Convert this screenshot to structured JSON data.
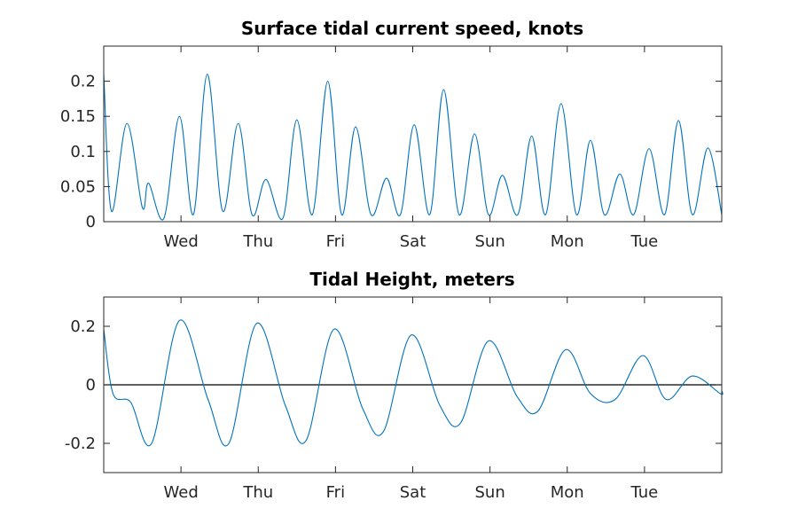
{
  "chart_data": [
    {
      "type": "line",
      "title": "Surface tidal current speed, knots",
      "x_domain": [
        0,
        8
      ],
      "xticks": [
        {
          "x": 1,
          "label": "Wed"
        },
        {
          "x": 2,
          "label": "Thu"
        },
        {
          "x": 3,
          "label": "Fri"
        },
        {
          "x": 4,
          "label": "Sat"
        },
        {
          "x": 5,
          "label": "Sun"
        },
        {
          "x": 6,
          "label": "Mon"
        },
        {
          "x": 7,
          "label": "Tue"
        }
      ],
      "ylim": [
        0,
        0.25
      ],
      "yticks": [
        {
          "v": 0,
          "label": "0"
        },
        {
          "v": 0.05,
          "label": "0.05"
        },
        {
          "v": 0.1,
          "label": "0.1"
        },
        {
          "v": 0.15,
          "label": "0.15"
        },
        {
          "v": 0.2,
          "label": "0.2"
        }
      ],
      "series": [
        {
          "color": "#0072BD",
          "x": [
            0,
            0.1,
            0.3,
            0.5,
            0.58,
            0.78,
            0.98,
            1.16,
            1.34,
            1.54,
            1.74,
            1.92,
            2.1,
            2.32,
            2.5,
            2.7,
            2.9,
            3.08,
            3.26,
            3.46,
            3.66,
            3.84,
            4.02,
            4.22,
            4.4,
            4.6,
            4.8,
            4.98,
            5.16,
            5.36,
            5.54,
            5.72,
            5.92,
            6.12,
            6.3,
            6.48,
            6.68,
            6.86,
            7.06,
            7.26,
            7.44,
            7.62,
            7.82,
            8
          ],
          "y": [
            0.21,
            0.015,
            0.14,
            0.02,
            0.055,
            0.005,
            0.15,
            0.01,
            0.21,
            0.015,
            0.14,
            0.01,
            0.06,
            0.005,
            0.145,
            0.01,
            0.2,
            0.01,
            0.135,
            0.01,
            0.062,
            0.01,
            0.138,
            0.01,
            0.188,
            0.01,
            0.125,
            0.01,
            0.066,
            0.01,
            0.122,
            0.01,
            0.168,
            0.01,
            0.116,
            0.01,
            0.068,
            0.01,
            0.104,
            0.01,
            0.144,
            0.01,
            0.105,
            0.01
          ]
        }
      ]
    },
    {
      "type": "line",
      "title": "Tidal Height, meters",
      "x_domain": [
        0,
        8
      ],
      "xticks": [
        {
          "x": 1,
          "label": "Wed"
        },
        {
          "x": 2,
          "label": "Thu"
        },
        {
          "x": 3,
          "label": "Fri"
        },
        {
          "x": 4,
          "label": "Sat"
        },
        {
          "x": 5,
          "label": "Sun"
        },
        {
          "x": 6,
          "label": "Mon"
        },
        {
          "x": 7,
          "label": "Tue"
        }
      ],
      "ylim": [
        -0.3,
        0.3
      ],
      "yticks": [
        {
          "v": -0.2,
          "label": "-0.2"
        },
        {
          "v": 0,
          "label": "0"
        },
        {
          "v": 0.2,
          "label": "0.2"
        }
      ],
      "zero_line": true,
      "series": [
        {
          "color": "#0072BD",
          "x": [
            0,
            0.12,
            0.35,
            0.62,
            0.98,
            1.35,
            1.62,
            1.98,
            2.35,
            2.62,
            2.98,
            3.35,
            3.62,
            3.98,
            4.35,
            4.62,
            4.98,
            5.35,
            5.62,
            5.98,
            6.3,
            6.62,
            6.98,
            7.28,
            7.62,
            7.98,
            8
          ],
          "y": [
            0.19,
            -0.03,
            -0.06,
            -0.2,
            0.22,
            -0.05,
            -0.2,
            0.21,
            -0.07,
            -0.19,
            0.19,
            -0.08,
            -0.16,
            0.17,
            -0.07,
            -0.13,
            0.15,
            -0.04,
            -0.09,
            0.12,
            -0.03,
            -0.05,
            0.1,
            -0.05,
            0.03,
            -0.03,
            -0.02
          ]
        }
      ]
    }
  ]
}
